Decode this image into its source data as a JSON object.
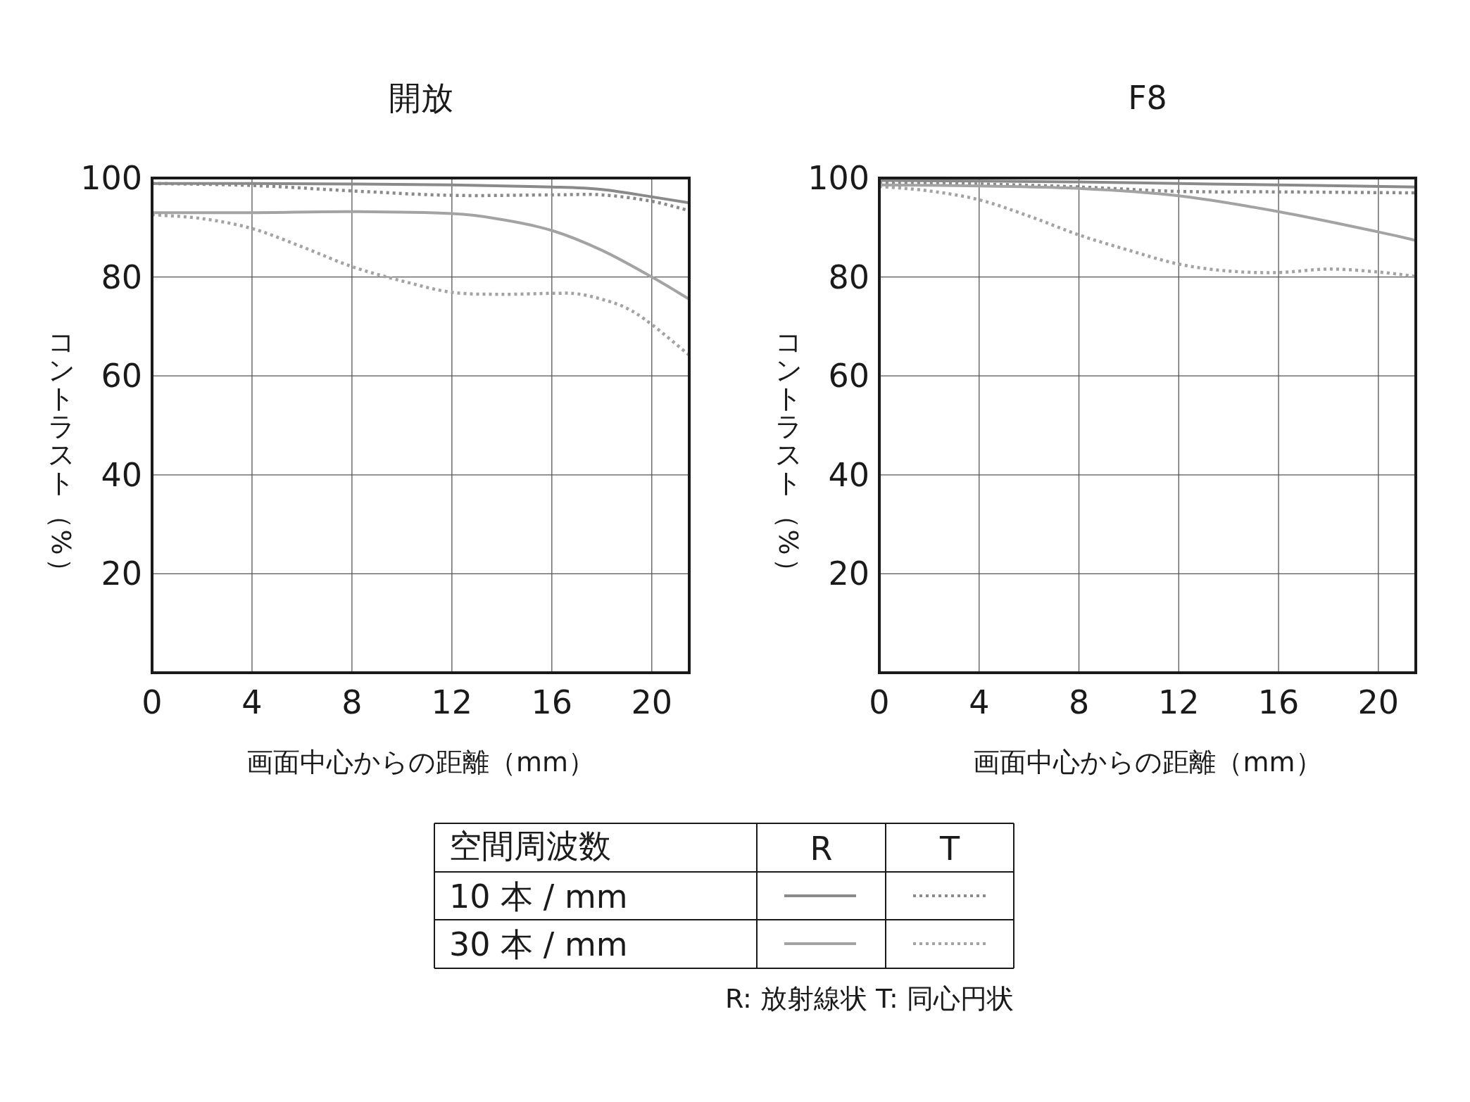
{
  "chart_data": [
    {
      "type": "line",
      "title": "開放",
      "xlabel": "画面中心からの距離（mm）",
      "ylabel": "コントラスト（%）",
      "xlim": [
        0,
        21.5
      ],
      "ylim": [
        0,
        100
      ],
      "xticks": [
        0,
        4,
        8,
        12,
        16,
        20
      ],
      "yticks": [
        20,
        40,
        60,
        80,
        100
      ],
      "grid": true,
      "series": [
        {
          "color": "#8a8a8a",
          "line_style": "solid",
          "x": [
            0,
            4,
            8,
            12,
            16,
            18,
            20,
            21.5
          ],
          "values": [
            98.9,
            98.9,
            98.8,
            98.6,
            98.2,
            97.7,
            96.2,
            95.0
          ]
        },
        {
          "color": "#8a8a8a",
          "line_style": "dotted",
          "x": [
            0,
            4,
            8,
            12,
            16,
            18,
            20,
            21.5
          ],
          "values": [
            98.9,
            98.5,
            97.4,
            96.5,
            96.6,
            96.6,
            95.3,
            93.4
          ]
        },
        {
          "color": "#a3a3a3",
          "line_style": "solid",
          "x": [
            0,
            4,
            8,
            12,
            14,
            16,
            18,
            20,
            21.5
          ],
          "values": [
            93.0,
            93.0,
            93.2,
            92.8,
            91.6,
            89.4,
            85.4,
            80.0,
            75.5
          ]
        },
        {
          "color": "#a3a3a3",
          "line_style": "dotted",
          "x": [
            0,
            2,
            4,
            6,
            8,
            10,
            12,
            14,
            16,
            17,
            18,
            19,
            20,
            21.5
          ],
          "values": [
            92.6,
            91.8,
            89.8,
            86.1,
            82.1,
            79.2,
            76.9,
            76.5,
            76.7,
            76.6,
            75.5,
            73.7,
            70.4,
            64.2
          ]
        }
      ]
    },
    {
      "type": "line",
      "title": "F8",
      "xlabel": "画面中心からの距離（mm）",
      "ylabel": "コントラスト（%）",
      "xlim": [
        0,
        21.5
      ],
      "ylim": [
        0,
        100
      ],
      "xticks": [
        0,
        4,
        8,
        12,
        16,
        20
      ],
      "yticks": [
        20,
        40,
        60,
        80,
        100
      ],
      "grid": true,
      "series": [
        {
          "color": "#8a8a8a",
          "line_style": "solid",
          "x": [
            0,
            4,
            8,
            12,
            16,
            21.5
          ],
          "values": [
            99.5,
            99.4,
            99.2,
            98.9,
            98.6,
            98.2
          ]
        },
        {
          "color": "#8a8a8a",
          "line_style": "dotted",
          "x": [
            0,
            4,
            8,
            12,
            16,
            21.5
          ],
          "values": [
            99.1,
            98.8,
            98.2,
            97.3,
            97.2,
            97.0
          ]
        },
        {
          "color": "#a3a3a3",
          "line_style": "solid",
          "x": [
            0,
            4,
            8,
            12,
            16,
            20,
            21.5
          ],
          "values": [
            98.6,
            98.4,
            97.9,
            96.4,
            93.2,
            89.1,
            87.4
          ]
        },
        {
          "color": "#a3a3a3",
          "line_style": "dotted",
          "x": [
            0,
            2,
            4,
            6,
            8,
            10,
            12,
            14,
            16,
            18,
            20,
            21.5
          ],
          "values": [
            98.3,
            97.4,
            95.6,
            92.3,
            88.5,
            85.4,
            82.6,
            81.2,
            80.9,
            81.6,
            81.0,
            80.1
          ]
        }
      ]
    },
    {
      "type": "other",
      "annotations": [
        "空間周波数",
        "R",
        "T",
        "10 本 / mm",
        "30 本 / mm",
        "R: 放射線状  T: 同心円状"
      ]
    }
  ]
}
